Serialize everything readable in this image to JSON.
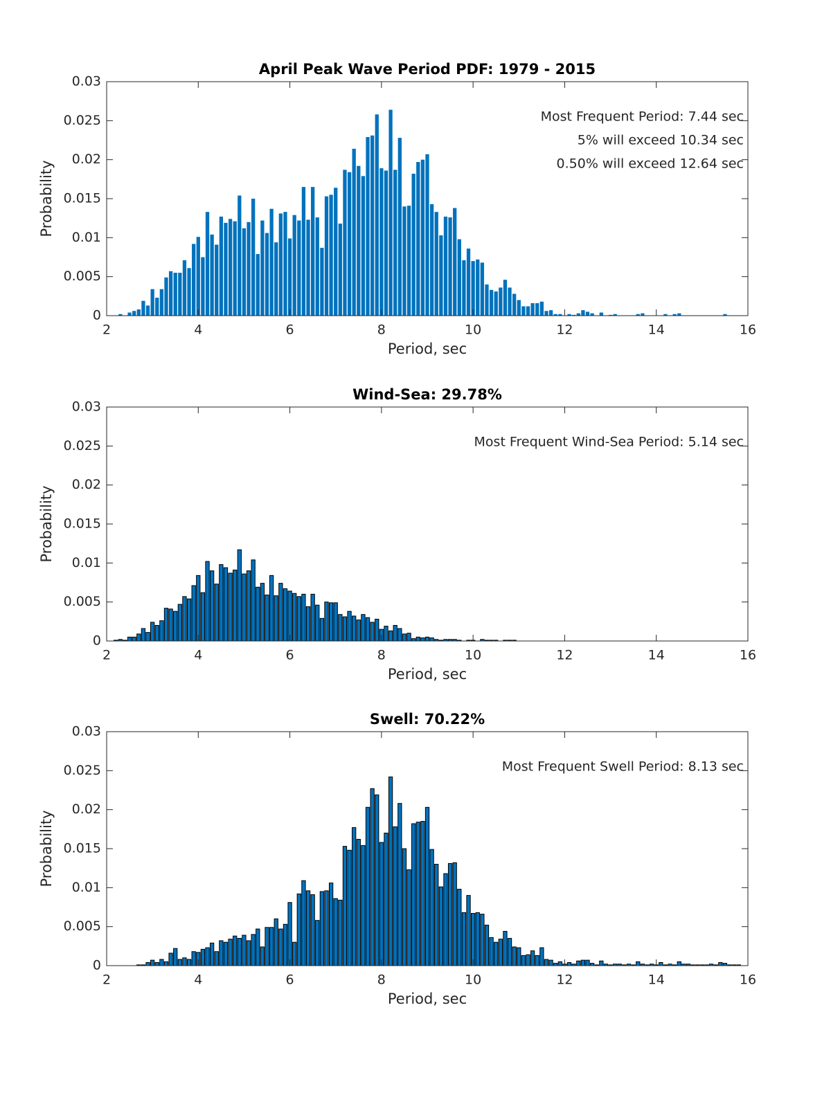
{
  "chart_data": [
    {
      "type": "bar",
      "title": "April Peak Wave Period PDF: 1979 - 2015",
      "xlabel": "Period, sec",
      "ylabel": "Probability",
      "annotations": [
        "Most Frequent Period: 7.44 sec",
        "5% will exceed 10.34 sec",
        "0.50% will exceed 12.64 sec"
      ],
      "color": "#0072bd",
      "x": [
        2.2,
        2.3,
        2.4,
        2.5,
        2.6,
        2.7,
        2.8,
        2.9,
        3.0,
        3.1,
        3.2,
        3.3,
        3.4,
        3.5,
        3.6,
        3.7,
        3.8,
        3.9,
        4.0,
        4.1,
        4.2,
        4.3,
        4.4,
        4.5,
        4.6,
        4.7,
        4.8,
        4.9,
        5.0,
        5.1,
        5.2,
        5.3,
        5.4,
        5.5,
        5.6,
        5.7,
        5.8,
        5.9,
        6.0,
        6.1,
        6.2,
        6.3,
        6.4,
        6.5,
        6.6,
        6.7,
        6.8,
        6.9,
        7.0,
        7.1,
        7.2,
        7.3,
        7.4,
        7.5,
        7.6,
        7.7,
        7.8,
        7.9,
        8.0,
        8.1,
        8.2,
        8.3,
        8.4,
        8.5,
        8.6,
        8.7,
        8.8,
        8.9,
        9.0,
        9.1,
        9.2,
        9.3,
        9.4,
        9.5,
        9.6,
        9.7,
        9.8,
        9.9,
        10.0,
        10.1,
        10.2,
        10.3,
        10.4,
        10.5,
        10.6,
        10.7,
        10.8,
        10.9,
        11.0,
        11.1,
        11.2,
        11.3,
        11.4,
        11.5,
        11.6,
        11.7,
        11.8,
        11.9,
        12.0,
        12.1,
        12.2,
        12.3,
        12.4,
        12.5,
        12.6,
        12.7,
        12.8,
        12.9,
        13.0,
        13.1,
        13.2,
        13.3,
        13.4,
        13.5,
        13.6,
        13.7,
        13.8,
        13.9,
        14.0,
        14.1,
        14.2,
        14.3,
        14.4,
        14.5,
        14.6,
        14.7,
        14.8,
        14.9,
        15.0,
        15.1,
        15.2,
        15.3,
        15.4,
        15.5,
        15.6,
        15.7,
        15.8,
        15.9
      ],
      "values": [
        0,
        0.0002,
        0,
        0.0004,
        0.0006,
        0.0008,
        0.0019,
        0.0013,
        0.0034,
        0.0023,
        0.0034,
        0.0049,
        0.0057,
        0.0055,
        0.0055,
        0.0071,
        0.0061,
        0.0092,
        0.0101,
        0.0075,
        0.0133,
        0.0104,
        0.0091,
        0.0127,
        0.0119,
        0.0124,
        0.0121,
        0.0154,
        0.0112,
        0.012,
        0.015,
        0.0079,
        0.0122,
        0.0106,
        0.0137,
        0.0094,
        0.0131,
        0.0133,
        0.0099,
        0.0129,
        0.0122,
        0.0165,
        0.0123,
        0.0165,
        0.0126,
        0.0087,
        0.0153,
        0.0155,
        0.0164,
        0.0118,
        0.0187,
        0.0184,
        0.0214,
        0.0192,
        0.0179,
        0.0229,
        0.0231,
        0.0258,
        0.0189,
        0.0186,
        0.0264,
        0.0187,
        0.0228,
        0.014,
        0.0141,
        0.0182,
        0.0197,
        0.02,
        0.0207,
        0.0143,
        0.0133,
        0.0103,
        0.0127,
        0.0126,
        0.0138,
        0.0098,
        0.0071,
        0.0086,
        0.007,
        0.0072,
        0.0068,
        0.004,
        0.0033,
        0.0031,
        0.0036,
        0.0046,
        0.0036,
        0.0028,
        0.002,
        0.0012,
        0.0012,
        0.0016,
        0.0016,
        0.0018,
        0.0006,
        0.0007,
        0.0002,
        0.0002,
        0,
        0.0002,
        0.0001,
        0.0003,
        0.0007,
        0.0005,
        0.0003,
        0,
        0.0004,
        0,
        0.0001,
        0.0002,
        0,
        0,
        0,
        0,
        0.0002,
        0.0003,
        0,
        0,
        0,
        0,
        0.0002,
        0,
        0.0002,
        0.0003,
        0,
        0,
        0,
        0,
        0,
        0,
        0,
        0,
        0,
        0.0002,
        0,
        0,
        0,
        0
      ],
      "xlim": [
        2,
        16
      ],
      "xticks": [
        2,
        4,
        6,
        8,
        10,
        12,
        14,
        16
      ],
      "ylim": [
        0,
        0.03
      ],
      "yticks": [
        0,
        0.005,
        0.01,
        0.015,
        0.02,
        0.025,
        0.03
      ]
    },
    {
      "type": "bar",
      "title": "Wind-Sea: 29.78%",
      "xlabel": "Period, sec",
      "ylabel": "Probability",
      "annotations": [
        "Most Frequent Wind-Sea Period: 5.14 sec"
      ],
      "color": "#0072bd",
      "edgecolor": "#000000",
      "x": [
        2.2,
        2.3,
        2.4,
        2.5,
        2.6,
        2.7,
        2.8,
        2.9,
        3.0,
        3.1,
        3.2,
        3.3,
        3.4,
        3.5,
        3.6,
        3.7,
        3.8,
        3.9,
        4.0,
        4.1,
        4.2,
        4.3,
        4.4,
        4.5,
        4.6,
        4.7,
        4.8,
        4.9,
        5.0,
        5.1,
        5.2,
        5.3,
        5.4,
        5.5,
        5.6,
        5.7,
        5.8,
        5.9,
        6.0,
        6.1,
        6.2,
        6.3,
        6.4,
        6.5,
        6.6,
        6.7,
        6.8,
        6.9,
        7.0,
        7.1,
        7.2,
        7.3,
        7.4,
        7.5,
        7.6,
        7.7,
        7.8,
        7.9,
        8.0,
        8.1,
        8.2,
        8.3,
        8.4,
        8.5,
        8.6,
        8.7,
        8.8,
        8.9,
        9.0,
        9.1,
        9.2,
        9.3,
        9.4,
        9.5,
        9.6,
        9.7,
        9.8,
        9.9,
        10.0,
        10.1,
        10.2,
        10.3,
        10.4,
        10.5,
        10.6,
        10.7,
        10.8,
        10.9,
        11.0,
        11.1,
        11.2,
        11.3,
        11.4,
        11.5,
        11.6,
        11.7,
        11.8,
        11.9,
        12.0,
        12.1,
        12.2,
        12.3,
        12.4,
        12.5,
        12.6,
        12.7,
        12.8,
        12.9,
        13.0,
        13.1,
        13.2,
        13.3,
        13.4,
        13.5,
        13.6,
        13.7,
        13.8,
        13.9,
        14.0,
        14.1,
        14.2,
        14.3,
        14.4,
        14.5,
        14.6,
        14.7,
        14.8,
        14.9,
        15.0,
        15.1,
        15.2,
        15.3,
        15.4,
        15.5,
        15.6,
        15.7,
        15.8,
        15.9
      ],
      "values": [
        0.0001,
        0.0002,
        0.0001,
        0.0005,
        0.0005,
        0.0009,
        0.0016,
        0.0011,
        0.0024,
        0.002,
        0.0026,
        0.0042,
        0.0041,
        0.0038,
        0.0047,
        0.0057,
        0.0054,
        0.0071,
        0.0084,
        0.0062,
        0.0102,
        0.009,
        0.0073,
        0.0098,
        0.0094,
        0.0087,
        0.0091,
        0.0117,
        0.0086,
        0.009,
        0.0104,
        0.0069,
        0.0074,
        0.0059,
        0.0084,
        0.0058,
        0.0074,
        0.0067,
        0.0064,
        0.0061,
        0.0057,
        0.006,
        0.0044,
        0.006,
        0.0046,
        0.0029,
        0.005,
        0.0049,
        0.0049,
        0.0034,
        0.0031,
        0.0038,
        0.0032,
        0.0027,
        0.0034,
        0.003,
        0.0024,
        0.0028,
        0.0015,
        0.0019,
        0.0013,
        0.002,
        0.0016,
        0.0009,
        0.001,
        0.0003,
        0.0005,
        0.0004,
        0.0005,
        0.0004,
        0.0002,
        0.0001,
        0.0002,
        0.0002,
        0.0002,
        0.0001,
        0,
        0.0001,
        0.0001,
        0,
        0.0002,
        0.0001,
        0.0001,
        0.0001,
        0,
        0.0001,
        0.0001,
        0.0001,
        0,
        0,
        0,
        0,
        0,
        0,
        0,
        0,
        0,
        0,
        0,
        0,
        0,
        0,
        0,
        0,
        0,
        0,
        0,
        0,
        0,
        0,
        0,
        0,
        0,
        0,
        0,
        0,
        0,
        0,
        0,
        0,
        0,
        0,
        0,
        0,
        0,
        0,
        0,
        0,
        0,
        0,
        0,
        0,
        0,
        0,
        0,
        0,
        0,
        0
      ],
      "xlim": [
        2,
        16
      ],
      "xticks": [
        2,
        4,
        6,
        8,
        10,
        12,
        14,
        16
      ],
      "ylim": [
        0,
        0.03
      ],
      "yticks": [
        0,
        0.005,
        0.01,
        0.015,
        0.02,
        0.025,
        0.03
      ]
    },
    {
      "type": "bar",
      "title": "Swell: 70.22%",
      "xlabel": "Period, sec",
      "ylabel": "Probability",
      "annotations": [
        "Most Frequent Swell Period: 8.13 sec"
      ],
      "color": "#0072bd",
      "edgecolor": "#000000",
      "x": [
        2.2,
        2.3,
        2.4,
        2.5,
        2.6,
        2.7,
        2.8,
        2.9,
        3.0,
        3.1,
        3.2,
        3.3,
        3.4,
        3.5,
        3.6,
        3.7,
        3.8,
        3.9,
        4.0,
        4.1,
        4.2,
        4.3,
        4.4,
        4.5,
        4.6,
        4.7,
        4.8,
        4.9,
        5.0,
        5.1,
        5.2,
        5.3,
        5.4,
        5.5,
        5.6,
        5.7,
        5.8,
        5.9,
        6.0,
        6.1,
        6.2,
        6.3,
        6.4,
        6.5,
        6.6,
        6.7,
        6.8,
        6.9,
        7.0,
        7.1,
        7.2,
        7.3,
        7.4,
        7.5,
        7.6,
        7.7,
        7.8,
        7.9,
        8.0,
        8.1,
        8.2,
        8.3,
        8.4,
        8.5,
        8.6,
        8.7,
        8.8,
        8.9,
        9.0,
        9.1,
        9.2,
        9.3,
        9.4,
        9.5,
        9.6,
        9.7,
        9.8,
        9.9,
        10.0,
        10.1,
        10.2,
        10.3,
        10.4,
        10.5,
        10.6,
        10.7,
        10.8,
        10.9,
        11.0,
        11.1,
        11.2,
        11.3,
        11.4,
        11.5,
        11.6,
        11.7,
        11.8,
        11.9,
        12.0,
        12.1,
        12.2,
        12.3,
        12.4,
        12.5,
        12.6,
        12.7,
        12.8,
        12.9,
        13.0,
        13.1,
        13.2,
        13.3,
        13.4,
        13.5,
        13.6,
        13.7,
        13.8,
        13.9,
        14.0,
        14.1,
        14.2,
        14.3,
        14.4,
        14.5,
        14.6,
        14.7,
        14.8,
        14.9,
        15.0,
        15.1,
        15.2,
        15.3,
        15.4,
        15.5,
        15.6,
        15.7,
        15.8,
        15.9
      ],
      "values": [
        0,
        0,
        0,
        0,
        0,
        0.0001,
        0.0001,
        0.0004,
        0.0007,
        0.0004,
        0.0008,
        0.0005,
        0.0016,
        0.0022,
        0.0008,
        0.001,
        0.0008,
        0.0018,
        0.0017,
        0.0021,
        0.0023,
        0.0029,
        0.0018,
        0.0032,
        0.003,
        0.0034,
        0.0038,
        0.0035,
        0.0039,
        0.0032,
        0.004,
        0.0047,
        0.0024,
        0.0049,
        0.0049,
        0.006,
        0.0047,
        0.0053,
        0.0081,
        0.003,
        0.0092,
        0.0109,
        0.0096,
        0.0091,
        0.0058,
        0.0095,
        0.0096,
        0.0106,
        0.0086,
        0.0084,
        0.0153,
        0.0148,
        0.0177,
        0.0162,
        0.0154,
        0.0203,
        0.0227,
        0.0219,
        0.0158,
        0.017,
        0.0242,
        0.0178,
        0.0208,
        0.015,
        0.0123,
        0.0182,
        0.0184,
        0.0185,
        0.0203,
        0.0149,
        0.013,
        0.0101,
        0.0118,
        0.0131,
        0.0132,
        0.0098,
        0.0068,
        0.009,
        0.0067,
        0.0068,
        0.0066,
        0.0052,
        0.0036,
        0.003,
        0.0034,
        0.0044,
        0.0035,
        0.0024,
        0.0023,
        0.0013,
        0.0014,
        0.0019,
        0.0013,
        0.0023,
        0.0008,
        0.0007,
        0.0003,
        0.0005,
        0.0002,
        0.0004,
        0.0002,
        0.0006,
        0.0007,
        0.0007,
        0.0003,
        0.0001,
        0.0006,
        0.0002,
        0.0001,
        0.0002,
        0.0002,
        0.0001,
        0.0002,
        0.0001,
        0.0005,
        0.0002,
        0.0001,
        0.0002,
        0.0001,
        0.0004,
        0.0001,
        0.0002,
        0.0001,
        0.0005,
        0.0002,
        0.0002,
        0.0001,
        0.0001,
        0.0001,
        0.0001,
        0.0002,
        0.0001,
        0.0004,
        0.0003,
        0.0001,
        0.0001,
        0.0001,
        0
      ],
      "xlim": [
        2,
        16
      ],
      "xticks": [
        2,
        4,
        6,
        8,
        10,
        12,
        14,
        16
      ],
      "ylim": [
        0,
        0.03
      ],
      "yticks": [
        0,
        0.005,
        0.01,
        0.015,
        0.02,
        0.025,
        0.03
      ]
    }
  ]
}
